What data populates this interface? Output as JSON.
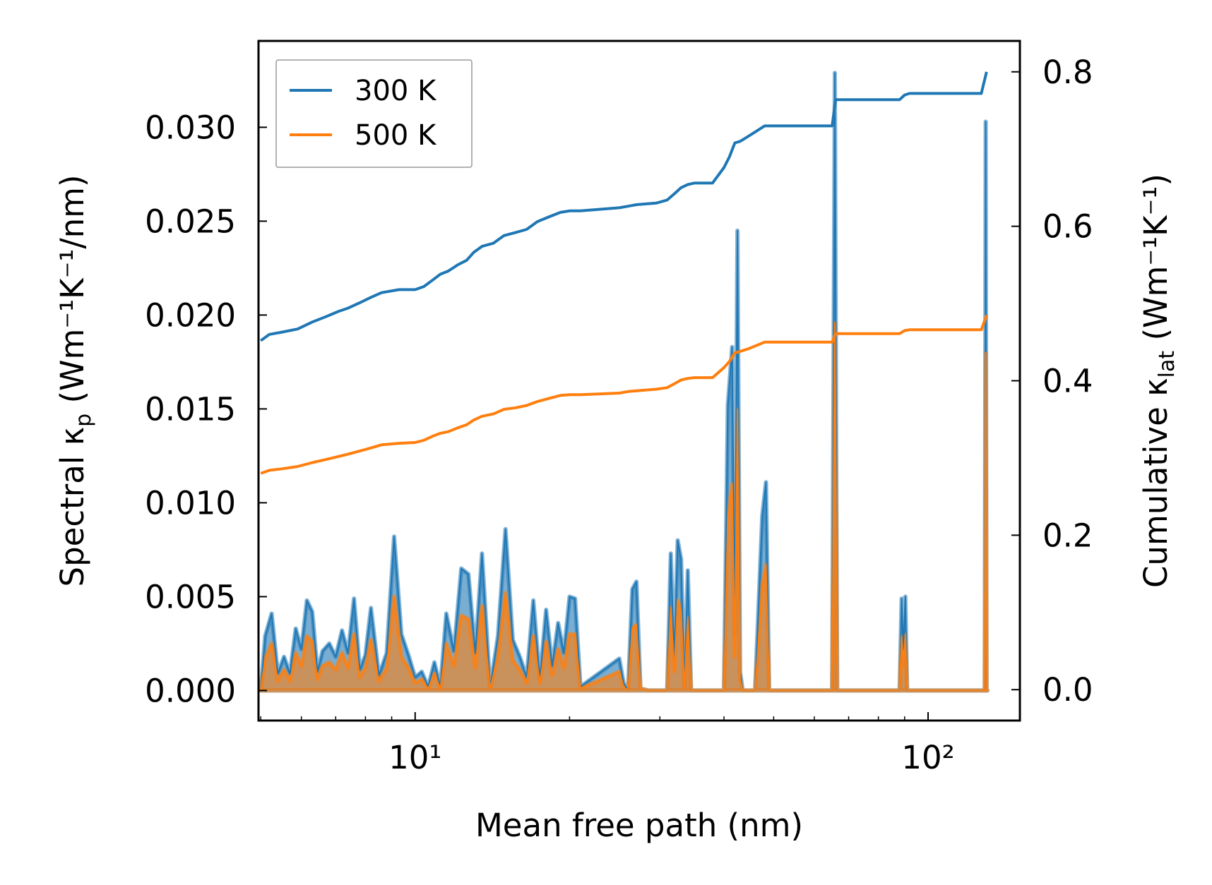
{
  "chart_data": {
    "type": "line",
    "xscale": "log",
    "xlim": [
      4.95,
      151
    ],
    "xlabel": "Mean free path (nm)",
    "ylabel_left": {
      "base": "Spectral κ",
      "sub": "p",
      "units": " (Wm⁻¹K⁻¹/nm)"
    },
    "ylabel_right": {
      "base": "Cumulative κ",
      "sub": "lat",
      "units": " (Wm⁻¹K⁻¹)"
    },
    "ylim_left": [
      -0.0016,
      0.0346
    ],
    "ylim_right": [
      -0.04,
      0.84
    ],
    "x_ticks": [
      {
        "value": 10,
        "label": "10¹"
      },
      {
        "value": 100,
        "label": "10²"
      }
    ],
    "y_ticks_left": [
      {
        "value": 0.0,
        "label": "0.000"
      },
      {
        "value": 0.005,
        "label": "0.005"
      },
      {
        "value": 0.01,
        "label": "0.010"
      },
      {
        "value": 0.015,
        "label": "0.015"
      },
      {
        "value": 0.02,
        "label": "0.020"
      },
      {
        "value": 0.025,
        "label": "0.025"
      },
      {
        "value": 0.03,
        "label": "0.030"
      }
    ],
    "y_ticks_right": [
      {
        "value": 0.0,
        "label": "0.0"
      },
      {
        "value": 0.2,
        "label": "0.2"
      },
      {
        "value": 0.4,
        "label": "0.4"
      },
      {
        "value": 0.6,
        "label": "0.6"
      },
      {
        "value": 0.8,
        "label": "0.8"
      }
    ],
    "legend": {
      "location": "upper left",
      "entries": [
        {
          "label": "300 K",
          "color": "#1f77b4"
        },
        {
          "label": "500 K",
          "color": "#ff7f0e"
        }
      ]
    },
    "series": [
      {
        "name": "300 K",
        "color": "#1f77b4",
        "kind": "spectral",
        "axis": "left",
        "x": [
          5.0,
          5.1,
          5.25,
          5.4,
          5.55,
          5.7,
          5.85,
          6.0,
          6.15,
          6.3,
          6.45,
          6.6,
          6.8,
          7.0,
          7.2,
          7.4,
          7.6,
          7.8,
          8.0,
          8.2,
          8.5,
          8.8,
          9.1,
          9.4,
          9.7,
          10.0,
          10.3,
          10.6,
          10.9,
          11.2,
          11.5,
          11.9,
          12.3,
          12.7,
          13.1,
          13.5,
          14.0,
          14.5,
          15.0,
          15.5,
          16.0,
          16.5,
          17.0,
          17.5,
          18.0,
          18.5,
          19.0,
          19.5,
          20.0,
          20.5,
          21.0,
          25.0,
          25.5,
          26.0,
          26.5,
          27.0,
          27.5,
          28.5,
          31.0,
          31.5,
          32.0,
          32.5,
          33.0,
          33.5,
          34.0,
          34.5,
          35.0,
          35.5,
          40.0,
          40.7,
          41.5,
          42.0,
          42.5,
          43.0,
          43.5,
          44.0,
          46.0,
          47.5,
          48.3,
          49.0,
          49.5,
          50.0,
          51.0,
          65.0,
          65.8,
          66.5,
          67.2,
          68.0,
          88.0,
          88.8,
          89.5,
          90.3,
          91.0,
          91.8,
          92.5,
          93.2,
          94.0,
          129.0,
          129.5,
          130.0,
          130.5
        ],
        "y": [
          0,
          0.0029,
          0.0041,
          0.0009,
          0.0018,
          0.0009,
          0.0033,
          0.0022,
          0.0048,
          0.0042,
          0.001,
          0.0021,
          0.0025,
          0.0018,
          0.0032,
          0.002,
          0.0049,
          0.0011,
          0.0019,
          0.0044,
          0.0008,
          0.002,
          0.0082,
          0.003,
          0.0019,
          0.0007,
          0.001,
          0.0002,
          0.0015,
          0.0002,
          0.0041,
          0.0021,
          0.0065,
          0.0062,
          0.002,
          0.0073,
          0.0001,
          0.0029,
          0.0086,
          0.0027,
          0.0018,
          0.0007,
          0.0048,
          0.0006,
          0.0043,
          0.0013,
          0.0036,
          0.002,
          0.005,
          0.0049,
          0.0002,
          0.0017,
          0.0004,
          0.0,
          0.0054,
          0.0058,
          0.0001,
          0.0,
          0.0,
          0.0073,
          0.0017,
          0.008,
          0.007,
          0.0001,
          0.0064,
          0.0,
          0.0,
          0.0,
          0.0,
          0.0152,
          0.0183,
          0.003,
          0.0245,
          0.001,
          0.0,
          0.0,
          0.0,
          0.0093,
          0.0111,
          0.0,
          0.0,
          0.0,
          0.0,
          0.0,
          0.0329,
          0.0,
          0.0,
          0.0,
          0.0,
          0.0049,
          0.0022,
          0.005,
          0.0,
          0.0,
          0.0,
          0.0,
          0.0,
          0.0,
          0.0303,
          0.0,
          0.0
        ]
      },
      {
        "name": "500 K",
        "color": "#ff7f0e",
        "kind": "spectral",
        "axis": "left",
        "x": [
          5.0,
          5.1,
          5.25,
          5.4,
          5.55,
          5.7,
          5.85,
          6.0,
          6.15,
          6.3,
          6.45,
          6.6,
          6.8,
          7.0,
          7.2,
          7.4,
          7.6,
          7.8,
          8.0,
          8.2,
          8.5,
          8.8,
          9.1,
          9.4,
          9.7,
          10.0,
          10.3,
          10.6,
          10.9,
          11.2,
          11.5,
          11.9,
          12.3,
          12.7,
          13.1,
          13.5,
          14.0,
          14.5,
          15.0,
          15.5,
          16.0,
          16.5,
          17.0,
          17.5,
          18.0,
          18.5,
          19.0,
          19.5,
          20.0,
          20.5,
          21.0,
          25.0,
          25.5,
          26.0,
          26.5,
          27.0,
          27.5,
          28.5,
          31.0,
          31.5,
          32.0,
          32.5,
          33.0,
          33.5,
          34.0,
          34.5,
          35.0,
          35.5,
          40.0,
          40.7,
          41.5,
          42.0,
          42.5,
          43.0,
          43.5,
          44.0,
          46.0,
          47.5,
          48.3,
          49.0,
          49.5,
          50.0,
          51.0,
          65.0,
          65.8,
          66.5,
          67.2,
          68.0,
          88.0,
          88.8,
          89.5,
          90.3,
          91.0,
          91.8,
          92.5,
          93.2,
          94.0,
          129.0,
          129.5,
          130.0,
          130.5
        ],
        "y": [
          0,
          0.0017,
          0.0025,
          0.0005,
          0.0011,
          0.0005,
          0.002,
          0.0013,
          0.0029,
          0.0026,
          0.0006,
          0.0013,
          0.0015,
          0.0011,
          0.002,
          0.0012,
          0.003,
          0.0007,
          0.0012,
          0.0027,
          0.0005,
          0.0012,
          0.005,
          0.0018,
          0.0012,
          0.0004,
          0.0006,
          0.0001,
          0.0009,
          0.0001,
          0.0025,
          0.0013,
          0.004,
          0.0038,
          0.0012,
          0.0045,
          0.0001,
          0.0018,
          0.0052,
          0.0016,
          0.0011,
          0.0004,
          0.0029,
          0.0004,
          0.0026,
          0.0008,
          0.0022,
          0.0012,
          0.003,
          0.003,
          0.0001,
          0.001,
          0.0002,
          0.0,
          0.0033,
          0.0035,
          0.0001,
          0.0,
          0.0,
          0.0044,
          0.001,
          0.0048,
          0.0042,
          0.0001,
          0.0039,
          0.0,
          0.0,
          0.0,
          0.0,
          0.0092,
          0.011,
          0.0018,
          0.015,
          0.0006,
          0.0,
          0.0,
          0.0,
          0.0056,
          0.0067,
          0.0,
          0.0,
          0.0,
          0.0,
          0.0,
          0.0196,
          0.0,
          0.0,
          0.0,
          0.0,
          0.0029,
          0.0013,
          0.003,
          0.0,
          0.0,
          0.0,
          0.0,
          0.0,
          0.0,
          0.018,
          0.0,
          0.0
        ]
      },
      {
        "name": "300 K",
        "color": "#1f77b4",
        "kind": "cumulative",
        "axis": "right",
        "x": [
          5.0,
          5.2,
          5.5,
          5.9,
          6.3,
          6.7,
          7.1,
          7.4,
          7.8,
          8.2,
          8.6,
          9.3,
          10.0,
          10.4,
          10.8,
          11.2,
          11.6,
          12.1,
          12.6,
          13.0,
          13.5,
          14.2,
          14.9,
          15.7,
          16.5,
          17.3,
          18.2,
          19.2,
          20.0,
          21.0,
          25.0,
          26.0,
          27.0,
          29.5,
          31.0,
          32.0,
          33.0,
          34.0,
          35.0,
          38.0,
          40.0,
          41.0,
          42.0,
          43.0,
          44.5,
          46.0,
          48.0,
          65.0,
          66.0,
          88.0,
          90.0,
          92.0,
          127.0,
          130.0
        ],
        "y": [
          0.452,
          0.46,
          0.463,
          0.467,
          0.476,
          0.483,
          0.49,
          0.494,
          0.501,
          0.508,
          0.514,
          0.518,
          0.518,
          0.522,
          0.53,
          0.538,
          0.542,
          0.55,
          0.556,
          0.566,
          0.574,
          0.578,
          0.588,
          0.592,
          0.596,
          0.606,
          0.612,
          0.618,
          0.62,
          0.62,
          0.624,
          0.626,
          0.628,
          0.63,
          0.634,
          0.642,
          0.65,
          0.654,
          0.656,
          0.656,
          0.676,
          0.69,
          0.708,
          0.71,
          0.716,
          0.722,
          0.73,
          0.73,
          0.764,
          0.764,
          0.77,
          0.772,
          0.772,
          0.8
        ]
      },
      {
        "name": "500 K",
        "color": "#ff7f0e",
        "kind": "cumulative",
        "axis": "right",
        "x": [
          5.0,
          5.2,
          5.5,
          5.9,
          6.3,
          6.7,
          7.1,
          7.4,
          7.8,
          8.2,
          8.6,
          9.3,
          10.0,
          10.4,
          10.8,
          11.2,
          11.6,
          12.1,
          12.6,
          13.0,
          13.5,
          14.2,
          14.9,
          15.7,
          16.5,
          17.3,
          18.2,
          19.2,
          20.0,
          21.0,
          25.0,
          26.0,
          27.0,
          29.5,
          31.0,
          32.0,
          33.0,
          34.0,
          35.0,
          38.0,
          40.0,
          41.0,
          42.0,
          43.0,
          44.5,
          46.0,
          48.0,
          65.0,
          66.0,
          88.0,
          90.0,
          92.0,
          127.0,
          130.0
        ],
        "y": [
          0.28,
          0.284,
          0.286,
          0.289,
          0.294,
          0.298,
          0.302,
          0.305,
          0.309,
          0.313,
          0.317,
          0.319,
          0.32,
          0.323,
          0.328,
          0.332,
          0.334,
          0.339,
          0.343,
          0.349,
          0.354,
          0.357,
          0.363,
          0.365,
          0.368,
          0.373,
          0.377,
          0.381,
          0.382,
          0.382,
          0.384,
          0.386,
          0.387,
          0.389,
          0.391,
          0.396,
          0.401,
          0.403,
          0.404,
          0.404,
          0.417,
          0.425,
          0.436,
          0.438,
          0.441,
          0.445,
          0.45,
          0.45,
          0.461,
          0.461,
          0.465,
          0.466,
          0.466,
          0.485
        ]
      }
    ]
  }
}
